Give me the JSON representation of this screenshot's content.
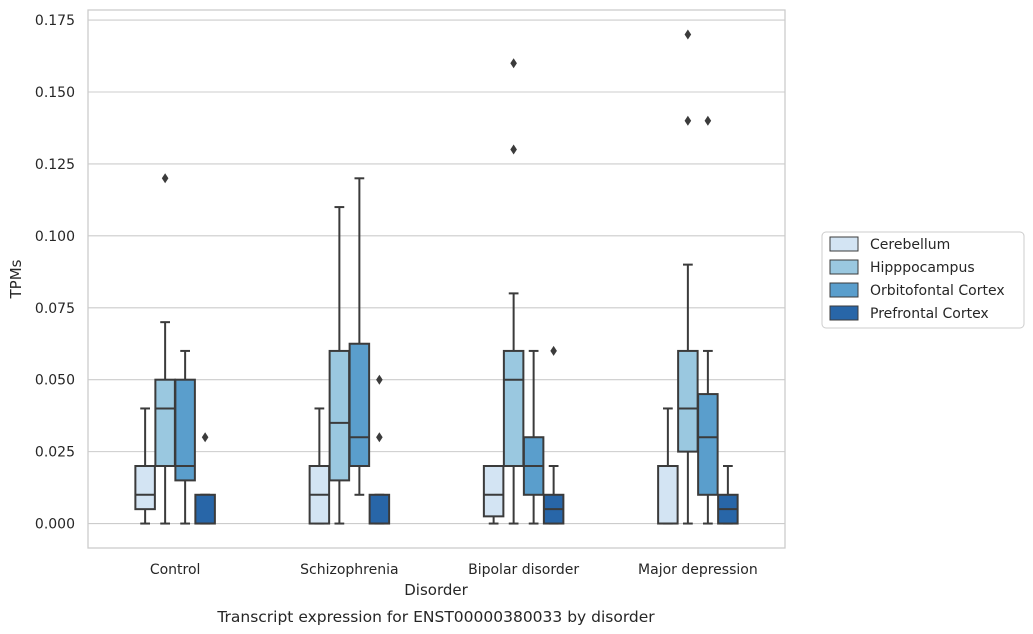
{
  "chart_data": {
    "type": "box",
    "title": "",
    "caption": "Transcript expression for ENST00000380033 by disorder",
    "xlabel": "Disorder",
    "ylabel": "TPMs",
    "ylim": [
      -0.0085,
      0.1785
    ],
    "yticks": [
      "0.000",
      "0.025",
      "0.050",
      "0.075",
      "0.100",
      "0.125",
      "0.150",
      "0.175"
    ],
    "grid": "horizontal",
    "legend_position": "right",
    "categories": [
      "Control",
      "Schizophrenia",
      "Bipolar disorder",
      "Major depression"
    ],
    "series": [
      {
        "name": "Cerebellum",
        "color": "#d3e4f3",
        "boxes": [
          {
            "whislo": 0.0,
            "q1": 0.005,
            "med": 0.01,
            "q3": 0.02,
            "whishi": 0.04,
            "fliers": []
          },
          {
            "whislo": 0.0,
            "q1": 0.0,
            "med": 0.01,
            "q3": 0.02,
            "whishi": 0.04,
            "fliers": []
          },
          {
            "whislo": 0.0,
            "q1": 0.0025,
            "med": 0.01,
            "q3": 0.02,
            "whishi": 0.02,
            "fliers": []
          },
          {
            "whislo": 0.0,
            "q1": 0.0,
            "med": 0.0,
            "q3": 0.02,
            "whishi": 0.04,
            "fliers": []
          }
        ]
      },
      {
        "name": "Hipppocampus",
        "color": "#9ac8e0",
        "boxes": [
          {
            "whislo": 0.0,
            "q1": 0.02,
            "med": 0.04,
            "q3": 0.05,
            "whishi": 0.07,
            "fliers": [
              0.12
            ]
          },
          {
            "whislo": 0.0,
            "q1": 0.015,
            "med": 0.035,
            "q3": 0.06,
            "whishi": 0.11,
            "fliers": []
          },
          {
            "whislo": 0.0,
            "q1": 0.02,
            "med": 0.05,
            "q3": 0.06,
            "whishi": 0.08,
            "fliers": [
              0.13,
              0.16
            ]
          },
          {
            "whislo": 0.0,
            "q1": 0.025,
            "med": 0.04,
            "q3": 0.06,
            "whishi": 0.09,
            "fliers": [
              0.14,
              0.17
            ]
          }
        ]
      },
      {
        "name": "Orbitofontal Cortex",
        "color": "#5a9ecc",
        "boxes": [
          {
            "whislo": 0.0,
            "q1": 0.015,
            "med": 0.02,
            "q3": 0.05,
            "whishi": 0.06,
            "fliers": []
          },
          {
            "whislo": 0.01,
            "q1": 0.02,
            "med": 0.03,
            "q3": 0.0625,
            "whishi": 0.12,
            "fliers": []
          },
          {
            "whislo": 0.0,
            "q1": 0.01,
            "med": 0.02,
            "q3": 0.03,
            "whishi": 0.06,
            "fliers": []
          },
          {
            "whislo": 0.0,
            "q1": 0.01,
            "med": 0.03,
            "q3": 0.045,
            "whishi": 0.06,
            "fliers": [
              0.14
            ]
          }
        ]
      },
      {
        "name": "Prefrontal Cortex",
        "color": "#2866a8",
        "boxes": [
          {
            "whislo": 0.0,
            "q1": 0.0,
            "med": 0.0,
            "q3": 0.01,
            "whishi": 0.01,
            "fliers": [
              0.03
            ]
          },
          {
            "whislo": 0.0,
            "q1": 0.0,
            "med": 0.0,
            "q3": 0.01,
            "whishi": 0.01,
            "fliers": [
              0.03,
              0.05
            ]
          },
          {
            "whislo": 0.0,
            "q1": 0.0,
            "med": 0.005,
            "q3": 0.01,
            "whishi": 0.02,
            "fliers": [
              0.06
            ]
          },
          {
            "whislo": 0.0,
            "q1": 0.0,
            "med": 0.005,
            "q3": 0.01,
            "whishi": 0.02,
            "fliers": []
          }
        ]
      }
    ]
  }
}
